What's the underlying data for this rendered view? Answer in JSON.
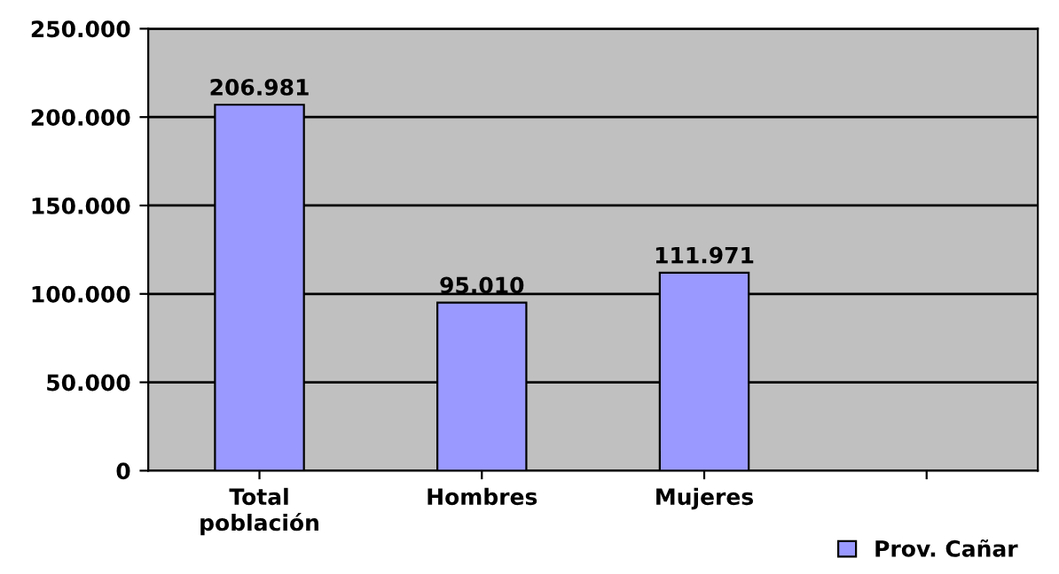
{
  "chart_data": {
    "type": "bar",
    "categories": [
      "Total\npoblación",
      "Hombres",
      "Mujeres",
      null
    ],
    "series": [
      {
        "name": "Prov. Cañar",
        "color": "#9999ff",
        "values": [
          206981,
          95010,
          111971,
          null
        ],
        "value_labels": [
          "206.981",
          "95.010",
          "111.971",
          null
        ]
      }
    ],
    "ylim": [
      0,
      250000
    ],
    "yticks": [
      0,
      {
        "value": 50000,
        "label": "50.000"
      },
      {
        "value": 100000,
        "label": "100.000"
      },
      {
        "value": 150000,
        "label": "150.000"
      },
      {
        "value": 200000,
        "label": "200.000"
      },
      {
        "value": 250000,
        "label": "250.000"
      }
    ],
    "grid": "y",
    "legend": "bottom right"
  }
}
